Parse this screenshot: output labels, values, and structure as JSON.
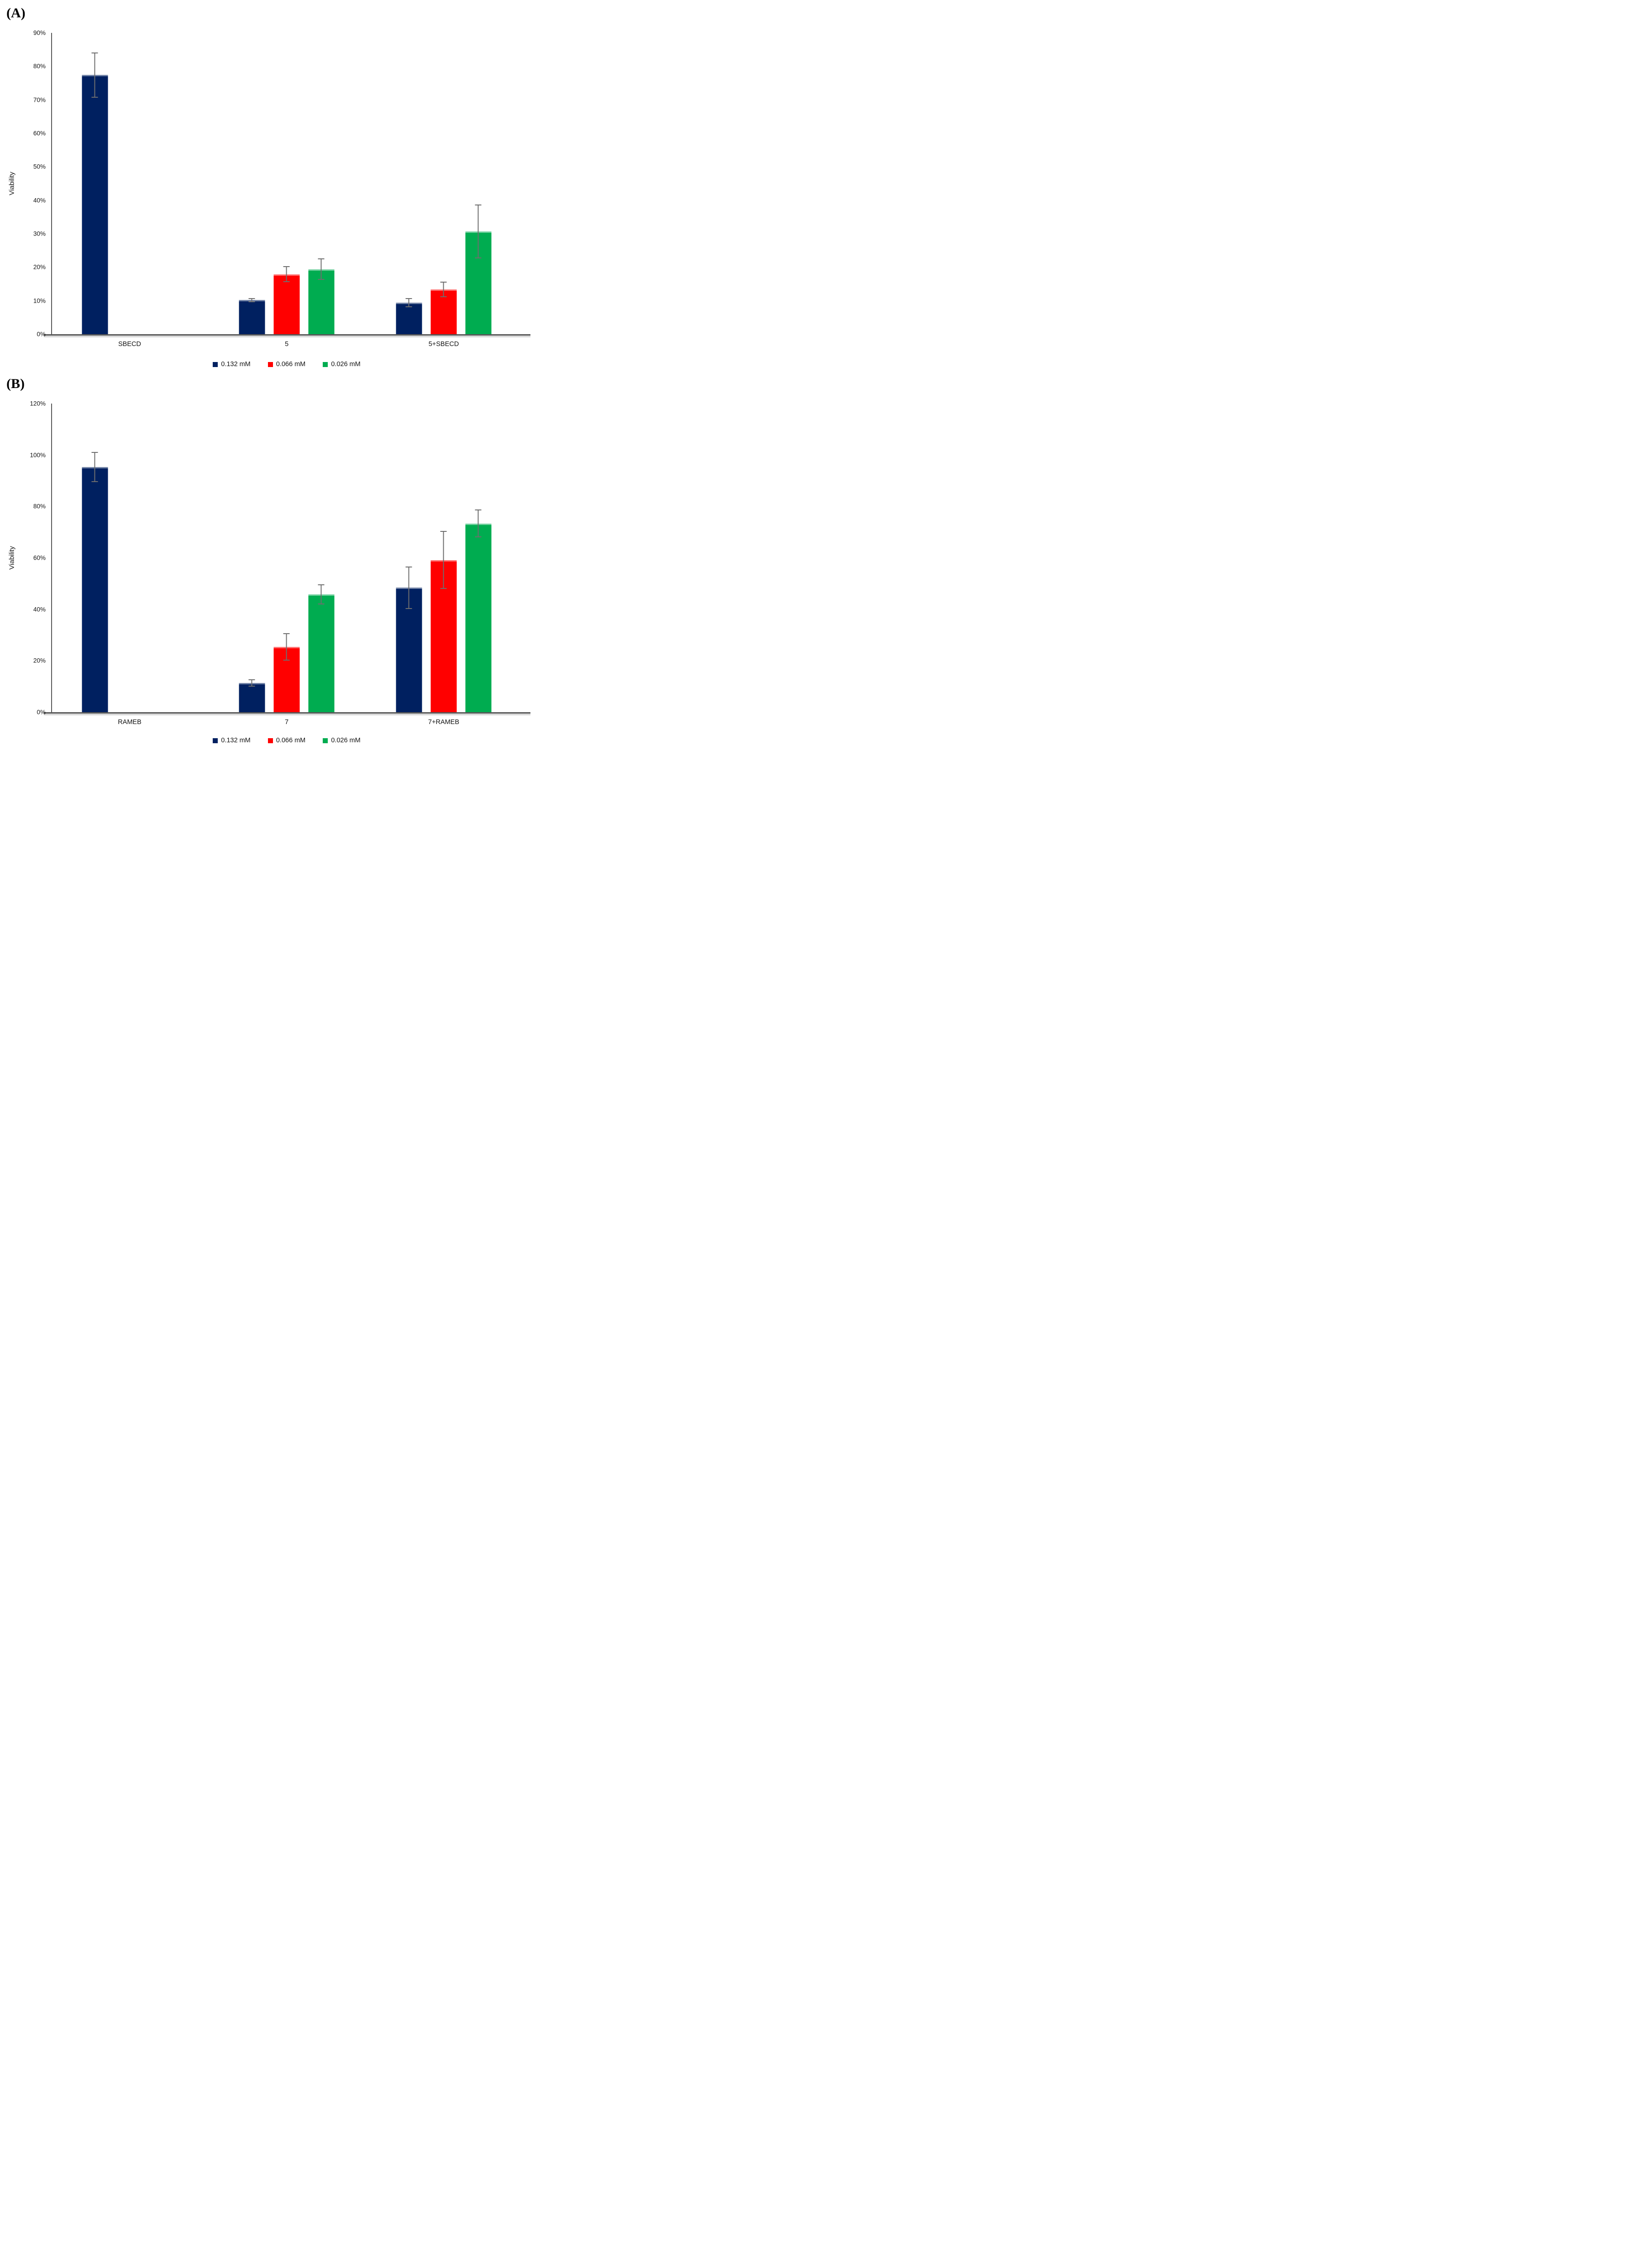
{
  "chart_data": [
    {
      "type": "bar",
      "panel_label": "(A)",
      "title": "",
      "xlabel": "",
      "ylabel": "Viability",
      "ylim": [
        0,
        90
      ],
      "ytick_step": 10,
      "ytick_labels": [
        "0%",
        "10%",
        "20%",
        "30%",
        "40%",
        "50%",
        "60%",
        "70%",
        "80%",
        "90%"
      ],
      "grid": false,
      "legend_position": "bottom",
      "categories": [
        "SBECD",
        "5",
        "5+SBECD"
      ],
      "series": [
        {
          "name": "0.132 mM",
          "color": "#002060",
          "values": [
            77.4,
            10.2,
            9.4
          ],
          "errors": [
            6.8,
            0.6,
            1.4
          ]
        },
        {
          "name": "0.066 mM",
          "color": "#FF0000",
          "values": [
            null,
            17.9,
            13.4
          ],
          "errors": [
            null,
            2.4,
            2.3
          ]
        },
        {
          "name": "0.026 mM",
          "color": "#00AC50",
          "values": [
            null,
            19.4,
            30.7
          ],
          "errors": [
            null,
            3.2,
            8.0
          ]
        }
      ],
      "error_bar_color": "#6e6e6e",
      "axis_color": "#595959"
    },
    {
      "type": "bar",
      "panel_label": "(B)",
      "title": "",
      "xlabel": "",
      "ylabel": "Viability",
      "ylim": [
        0,
        120
      ],
      "ytick_step": 20,
      "ytick_labels": [
        "0%",
        "20%",
        "40%",
        "60%",
        "80%",
        "100%",
        "120%"
      ],
      "grid": false,
      "legend_position": "bottom",
      "categories": [
        "RAMEB",
        "7",
        "7+RAMEB"
      ],
      "series": [
        {
          "name": "0.132 mM",
          "color": "#002060",
          "values": [
            95.3,
            11.4,
            48.4
          ],
          "errors": [
            5.9,
            1.4,
            8.2
          ]
        },
        {
          "name": "0.066 mM",
          "color": "#FF0000",
          "values": [
            null,
            25.4,
            59.2
          ],
          "errors": [
            null,
            5.3,
            11.2
          ]
        },
        {
          "name": "0.026 mM",
          "color": "#00AC50",
          "values": [
            null,
            45.8,
            73.4
          ],
          "errors": [
            null,
            3.9,
            5.4
          ]
        }
      ],
      "error_bar_color": "#6e6e6e",
      "axis_color": "#595959"
    }
  ]
}
